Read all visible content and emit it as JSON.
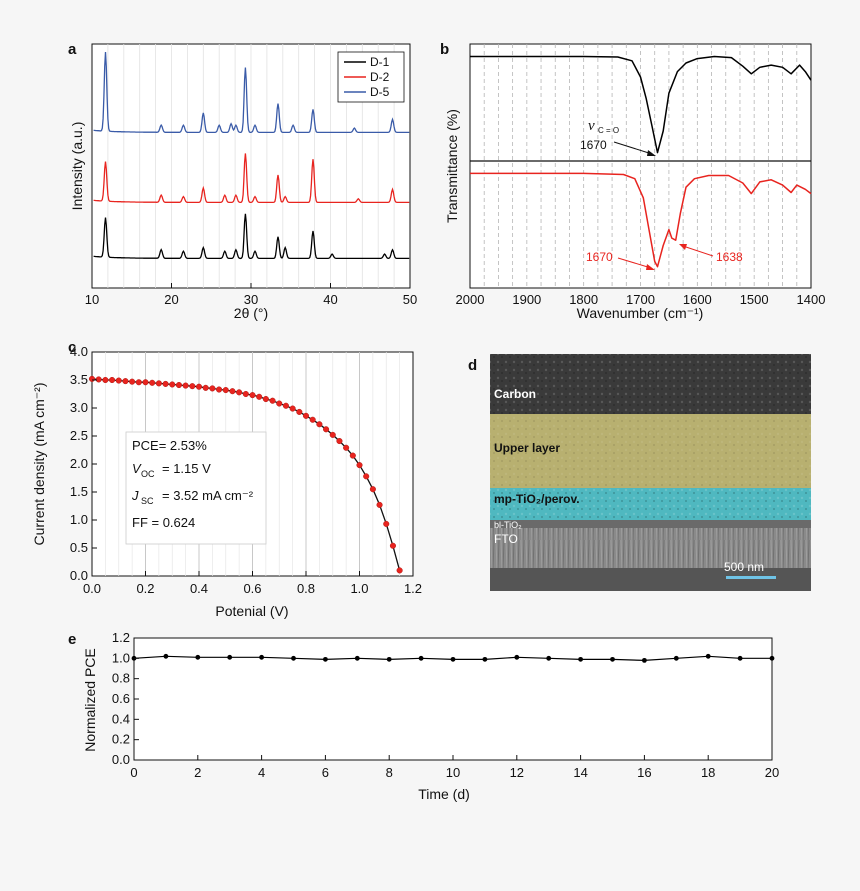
{
  "figure": {
    "panel_letters": [
      "a",
      "b",
      "c",
      "d",
      "e"
    ]
  },
  "chart_data": [
    {
      "panel": "a",
      "type": "line",
      "xlabel": "2θ (°)",
      "ylabel": "Intensity (a.u.)",
      "xlim": [
        10,
        50
      ],
      "xticks": [
        "10",
        "20",
        "30",
        "40",
        "50"
      ],
      "yticks_shown": false,
      "legend": {
        "placement": "top-right",
        "entries": [
          "D-1",
          "D-2",
          "D-5"
        ]
      },
      "series": [
        {
          "name": "D-1",
          "color": "#000000",
          "baseline": 0.05,
          "peaks": [
            [
              11.7,
              0.55
            ],
            [
              18.7,
              0.12
            ],
            [
              21.5,
              0.1
            ],
            [
              24.0,
              0.15
            ],
            [
              26.7,
              0.1
            ],
            [
              28.1,
              0.12
            ],
            [
              29.3,
              0.62
            ],
            [
              30.5,
              0.1
            ],
            [
              33.4,
              0.3
            ],
            [
              34.3,
              0.15
            ],
            [
              37.8,
              0.38
            ],
            [
              40.2,
              0.06
            ],
            [
              46.8,
              0.06
            ],
            [
              47.8,
              0.12
            ]
          ]
        },
        {
          "name": "D-2",
          "color": "#e8241f",
          "baseline": 0.05,
          "peaks": [
            [
              11.7,
              0.55
            ],
            [
              18.7,
              0.1
            ],
            [
              21.5,
              0.08
            ],
            [
              24.0,
              0.2
            ],
            [
              26.7,
              0.1
            ],
            [
              28.1,
              0.1
            ],
            [
              29.3,
              0.68
            ],
            [
              30.5,
              0.08
            ],
            [
              33.4,
              0.38
            ],
            [
              34.3,
              0.08
            ],
            [
              37.8,
              0.6
            ],
            [
              43.5,
              0.05
            ],
            [
              47.8,
              0.18
            ]
          ]
        },
        {
          "name": "D-5",
          "color": "#3a5ba8",
          "baseline": 0.05,
          "peaks": [
            [
              11.7,
              1.1
            ],
            [
              18.7,
              0.1
            ],
            [
              21.5,
              0.1
            ],
            [
              24.0,
              0.27
            ],
            [
              26.0,
              0.1
            ],
            [
              27.5,
              0.12
            ],
            [
              28.1,
              0.1
            ],
            [
              29.3,
              0.9
            ],
            [
              30.5,
              0.1
            ],
            [
              33.4,
              0.4
            ],
            [
              35.3,
              0.1
            ],
            [
              37.8,
              0.32
            ],
            [
              43.0,
              0.06
            ],
            [
              47.8,
              0.18
            ]
          ]
        }
      ]
    },
    {
      "panel": "b",
      "type": "line",
      "xlabel": "Wavenumber (cm⁻¹)",
      "ylabel": "Transmittance (%)",
      "xlim": [
        2000,
        1400
      ],
      "xticks": [
        "2000",
        "1900",
        "1800",
        "1700",
        "1600",
        "1500",
        "1400"
      ],
      "grid": "vertical dashed",
      "series": [
        {
          "name": "",
          "color": "#000000",
          "points": [
            [
              2000,
              94
            ],
            [
              1800,
              94
            ],
            [
              1740,
              93.5
            ],
            [
              1715,
              90
            ],
            [
              1700,
              75
            ],
            [
              1690,
              55
            ],
            [
              1680,
              30
            ],
            [
              1670,
              5
            ],
            [
              1660,
              25
            ],
            [
              1650,
              60
            ],
            [
              1635,
              80
            ],
            [
              1620,
              88
            ],
            [
              1600,
              92
            ],
            [
              1570,
              94
            ],
            [
              1540,
              93
            ],
            [
              1520,
              85
            ],
            [
              1505,
              78
            ],
            [
              1490,
              84
            ],
            [
              1470,
              86
            ],
            [
              1450,
              84
            ],
            [
              1435,
              78
            ],
            [
              1420,
              86
            ],
            [
              1410,
              80
            ],
            [
              1400,
              72
            ]
          ]
        },
        {
          "name": "",
          "color": "#e8241f",
          "points": [
            [
              2000,
              93
            ],
            [
              1800,
              93
            ],
            [
              1730,
              92
            ],
            [
              1710,
              88
            ],
            [
              1695,
              70
            ],
            [
              1685,
              40
            ],
            [
              1675,
              10
            ],
            [
              1670,
              5
            ],
            [
              1660,
              25
            ],
            [
              1650,
              40
            ],
            [
              1645,
              32
            ],
            [
              1638,
              30
            ],
            [
              1630,
              55
            ],
            [
              1620,
              80
            ],
            [
              1605,
              88
            ],
            [
              1580,
              91
            ],
            [
              1545,
              91
            ],
            [
              1520,
              84
            ],
            [
              1505,
              74
            ],
            [
              1490,
              85
            ],
            [
              1470,
              87
            ],
            [
              1450,
              82
            ],
            [
              1435,
              75
            ],
            [
              1425,
              82
            ],
            [
              1410,
              78
            ],
            [
              1400,
              74
            ]
          ]
        }
      ],
      "annotations": [
        {
          "label": "νC = O",
          "label_main": "ν",
          "label_sub": "C = O"
        },
        {
          "label": "1670",
          "color": "#000000"
        },
        {
          "label": "1670",
          "color": "#e8241f"
        },
        {
          "label": "1638",
          "color": "#e8241f"
        }
      ]
    },
    {
      "panel": "c",
      "type": "scatter",
      "xlabel": "Potenial (V)",
      "ylabel": "Current density (mA cm⁻²)",
      "xlim": [
        0.0,
        1.2
      ],
      "ylim": [
        0.0,
        4.0
      ],
      "xticks": [
        "0.0",
        "0.2",
        "0.4",
        "0.6",
        "0.8",
        "1.0",
        "1.2"
      ],
      "yticks": [
        "0.0",
        "0.5",
        "1.0",
        "1.5",
        "2.0",
        "2.5",
        "3.0",
        "3.5",
        "4.0"
      ],
      "grid": "vertical",
      "series": [
        {
          "name": "",
          "color": "#e8241f",
          "x": [
            0.0,
            0.025,
            0.05,
            0.075,
            0.1,
            0.125,
            0.15,
            0.175,
            0.2,
            0.225,
            0.25,
            0.275,
            0.3,
            0.325,
            0.35,
            0.375,
            0.4,
            0.425,
            0.45,
            0.475,
            0.5,
            0.525,
            0.55,
            0.575,
            0.6,
            0.625,
            0.65,
            0.675,
            0.7,
            0.725,
            0.75,
            0.775,
            0.8,
            0.825,
            0.85,
            0.875,
            0.9,
            0.925,
            0.95,
            0.975,
            1.0,
            1.025,
            1.05,
            1.075,
            1.1,
            1.125,
            1.15
          ],
          "y": [
            3.52,
            3.51,
            3.5,
            3.5,
            3.49,
            3.48,
            3.47,
            3.46,
            3.46,
            3.45,
            3.44,
            3.43,
            3.42,
            3.41,
            3.4,
            3.39,
            3.38,
            3.36,
            3.35,
            3.33,
            3.32,
            3.3,
            3.28,
            3.25,
            3.23,
            3.2,
            3.16,
            3.13,
            3.08,
            3.04,
            2.99,
            2.93,
            2.86,
            2.79,
            2.71,
            2.62,
            2.52,
            2.41,
            2.29,
            2.15,
            1.98,
            1.78,
            1.55,
            1.27,
            0.93,
            0.54,
            0.1
          ]
        }
      ],
      "stats": {
        "pce": "PCE= 2.53%",
        "voc_main": "V",
        "voc_sub": "OC",
        "voc_value": "= 1.15 V",
        "jsc_main": "J",
        "jsc_sub": "SC",
        "jsc_value": "= 3.52 mA cm⁻²",
        "ff": "FF   = 0.624"
      }
    },
    {
      "panel": "e",
      "type": "line",
      "xlabel": "Time (d)",
      "ylabel": "Normalized PCE",
      "xlim": [
        0,
        20
      ],
      "ylim": [
        0.0,
        1.2
      ],
      "xticks": [
        "0",
        "2",
        "4",
        "6",
        "8",
        "10",
        "12",
        "14",
        "16",
        "18",
        "20"
      ],
      "yticks": [
        "0.0",
        "0.2",
        "0.4",
        "0.6",
        "0.8",
        "1.0",
        "1.2"
      ],
      "series": [
        {
          "name": "",
          "color": "#000000",
          "x": [
            0,
            1,
            2,
            3,
            4,
            5,
            6,
            7,
            8,
            9,
            10,
            11,
            12,
            13,
            14,
            15,
            16,
            17,
            18,
            19,
            20
          ],
          "y": [
            1.0,
            1.02,
            1.01,
            1.01,
            1.01,
            1.0,
            0.99,
            1.0,
            0.99,
            1.0,
            0.99,
            0.99,
            1.01,
            1.0,
            0.99,
            0.99,
            0.98,
            1.0,
            1.02,
            1.0,
            1.0
          ]
        }
      ]
    }
  ],
  "sem_image": {
    "panel": "d",
    "layers": [
      {
        "label": "Carbon",
        "color": "#3a3a3a"
      },
      {
        "label": "Upper layer",
        "color": "#b8b070"
      },
      {
        "label": "mp-TiO₂/perov.",
        "color": "#4fb8c0"
      },
      {
        "label": "bl-TiO₂",
        "color": "#6a6a6a"
      },
      {
        "label": "FTO",
        "color": "#8a8a8a"
      }
    ],
    "scale_bar": "500 nm",
    "scale_bar_color": "#6fc3e6"
  }
}
